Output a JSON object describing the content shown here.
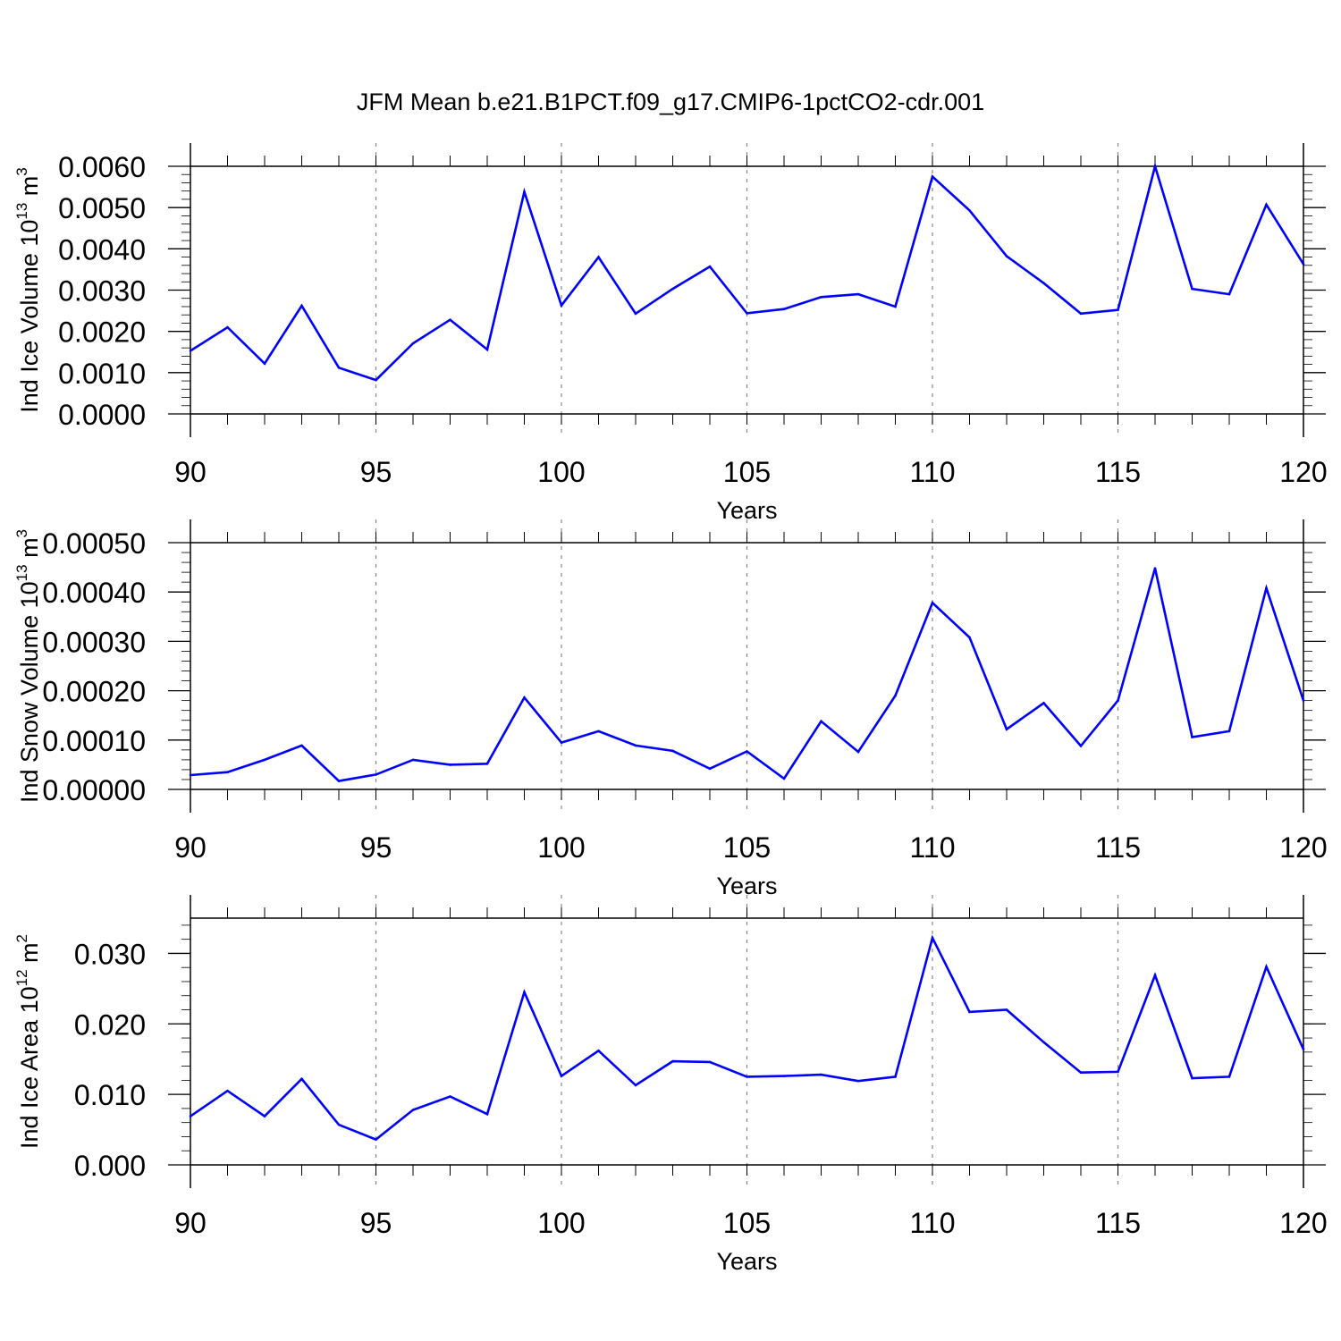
{
  "title": "JFM Mean b.e21.B1PCT.f09_g17.CMIP6-1pctCO2-cdr.001",
  "colors": {
    "series": "#0000ff",
    "axis": "#000000",
    "grid": "#888888"
  },
  "chart_data": [
    {
      "type": "line",
      "ylabel": {
        "text": "Ind Ice Volume 10",
        "exponent": "13",
        "unit": " m",
        "unit_exponent": "3"
      },
      "xlabel": "Years",
      "xlim": [
        90,
        120
      ],
      "ylim": [
        0,
        0.006
      ],
      "yticks": [
        0.0,
        0.001,
        0.002,
        0.003,
        0.004,
        0.005,
        0.006
      ],
      "ytick_labels": [
        "0.0000",
        "0.0010",
        "0.0020",
        "0.0030",
        "0.0040",
        "0.0050",
        "0.0060"
      ],
      "xticks": [
        90,
        95,
        100,
        105,
        110,
        115,
        120
      ],
      "xtick_labels": [
        "90",
        "95",
        "100",
        "105",
        "110",
        "115",
        "120"
      ],
      "grid_x": [
        95,
        100,
        105,
        110,
        115
      ],
      "x": [
        90,
        91,
        92,
        93,
        94,
        95,
        96,
        97,
        98,
        99,
        100,
        101,
        102,
        103,
        104,
        105,
        106,
        107,
        108,
        109,
        110,
        111,
        112,
        113,
        114,
        115,
        116,
        117,
        118,
        119,
        120
      ],
      "values": [
        0.00153,
        0.0021,
        0.00122,
        0.00262,
        0.00112,
        0.00082,
        0.00171,
        0.00228,
        0.00156,
        0.00538,
        0.00263,
        0.0038,
        0.00243,
        0.00303,
        0.00357,
        0.00244,
        0.00254,
        0.00283,
        0.0029,
        0.0026,
        0.00575,
        0.00493,
        0.00382,
        0.00317,
        0.00243,
        0.00252,
        0.006,
        0.00303,
        0.0029,
        0.00507,
        0.00363
      ]
    },
    {
      "type": "line",
      "ylabel": {
        "text": "Ind Snow Volume 10",
        "exponent": "13",
        "unit": " m",
        "unit_exponent": "3"
      },
      "xlabel": "Years",
      "xlim": [
        90,
        120
      ],
      "ylim": [
        0,
        0.0005
      ],
      "yticks": [
        0.0,
        0.0001,
        0.0002,
        0.0003,
        0.0004,
        0.0005
      ],
      "ytick_labels": [
        "0.00000",
        "0.00010",
        "0.00020",
        "0.00030",
        "0.00040",
        "0.00050"
      ],
      "xticks": [
        90,
        95,
        100,
        105,
        110,
        115,
        120
      ],
      "xtick_labels": [
        "90",
        "95",
        "100",
        "105",
        "110",
        "115",
        "120"
      ],
      "grid_x": [
        95,
        100,
        105,
        110,
        115
      ],
      "x": [
        90,
        91,
        92,
        93,
        94,
        95,
        96,
        97,
        98,
        99,
        100,
        101,
        102,
        103,
        104,
        105,
        106,
        107,
        108,
        109,
        110,
        111,
        112,
        113,
        114,
        115,
        116,
        117,
        118,
        119,
        120
      ],
      "values": [
        2.9e-05,
        3.5e-05,
        6e-05,
        8.9e-05,
        1.7e-05,
        3e-05,
        6e-05,
        5e-05,
        5.2e-05,
        0.000186,
        9.5e-05,
        0.000118,
        8.9e-05,
        7.8e-05,
        4.2e-05,
        7.7e-05,
        2.2e-05,
        0.000138,
        7.6e-05,
        0.00019,
        0.000378,
        0.000308,
        0.000122,
        0.000175,
        8.8e-05,
        0.00018,
        0.000448,
        0.000106,
        0.000118,
        0.000408,
        0.00018
      ]
    },
    {
      "type": "line",
      "ylabel": {
        "text": "Ind Ice Area 10",
        "exponent": "12",
        "unit": " m",
        "unit_exponent": "2"
      },
      "xlabel": "Years",
      "xlim": [
        90,
        120
      ],
      "ylim": [
        0,
        0.035
      ],
      "yticks": [
        0.0,
        0.01,
        0.02,
        0.03
      ],
      "ytick_labels": [
        "0.000",
        "0.010",
        "0.020",
        "0.030"
      ],
      "xticks": [
        90,
        95,
        100,
        105,
        110,
        115,
        120
      ],
      "xtick_labels": [
        "90",
        "95",
        "100",
        "105",
        "110",
        "115",
        "120"
      ],
      "grid_x": [
        95,
        100,
        105,
        110,
        115
      ],
      "x": [
        90,
        91,
        92,
        93,
        94,
        95,
        96,
        97,
        98,
        99,
        100,
        101,
        102,
        103,
        104,
        105,
        106,
        107,
        108,
        109,
        110,
        111,
        112,
        113,
        114,
        115,
        116,
        117,
        118,
        119,
        120
      ],
      "values": [
        0.0069,
        0.0105,
        0.0069,
        0.0122,
        0.0057,
        0.0036,
        0.0078,
        0.0097,
        0.0072,
        0.0245,
        0.0126,
        0.0162,
        0.0113,
        0.0147,
        0.0146,
        0.0125,
        0.0126,
        0.0128,
        0.0119,
        0.0125,
        0.0322,
        0.0217,
        0.022,
        0.0174,
        0.0131,
        0.0132,
        0.0269,
        0.0123,
        0.0125,
        0.0281,
        0.0164
      ]
    }
  ]
}
